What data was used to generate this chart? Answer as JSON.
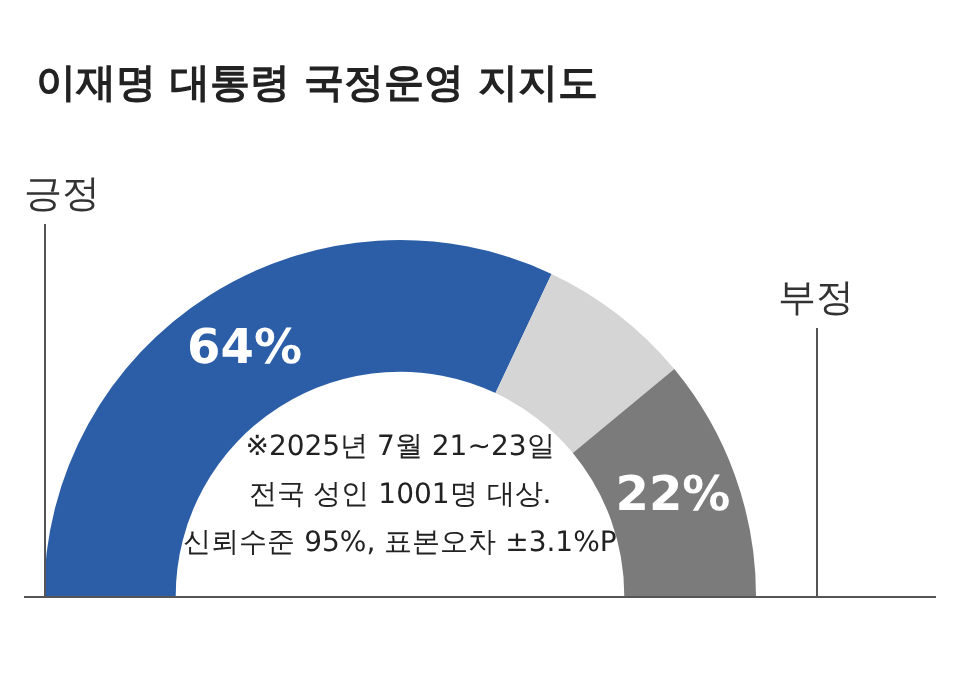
{
  "chart_data": {
    "type": "donut",
    "title": "이재명 대통령 국정운영 지지도",
    "categories": [
      "긍정",
      null,
      "부정"
    ],
    "values": [
      64,
      14,
      22
    ],
    "colors": [
      "#2b5ea7",
      "#d5d5d5",
      "#7b7b7b"
    ],
    "value_labels": [
      "64%",
      null,
      "22%"
    ],
    "annotations": [
      "※2025년 7월 21~23일\n전국 성인 1001명 대상.\n신뢰수준 95%, 표본오차 ±3.1%P"
    ]
  }
}
